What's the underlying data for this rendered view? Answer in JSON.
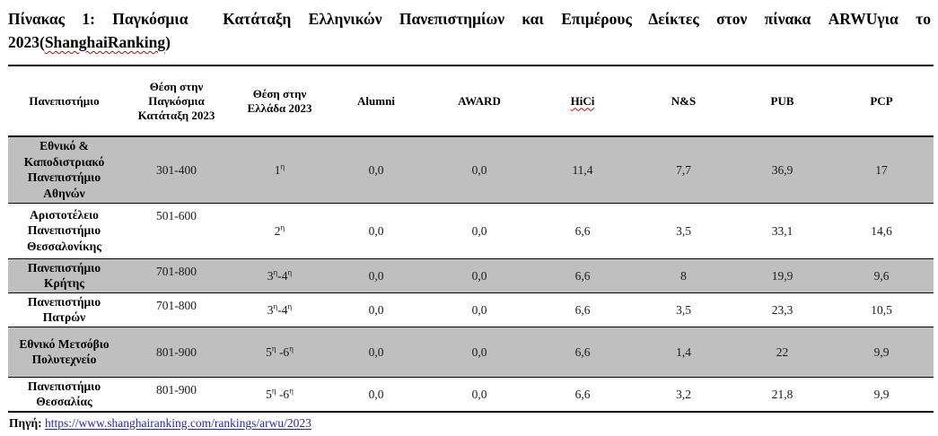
{
  "page": {
    "title": {
      "line1": "Πίνακας 1: Παγκόσμια  Κατάταξη Ελληνικών Πανεπιστημίων και Επιμέρους Δείκτες στον πίνακα ARWUγια το",
      "line2_prefix": "2023(",
      "line2_spellcheck": "ShanghaiRanking",
      "line2_suffix": ")"
    },
    "source": {
      "label": "Πηγή:",
      "url": "https://www.shanghairanking.com/rankings/arwu/2023"
    },
    "colors": {
      "row_shade": "#bfbfbf",
      "link": "#2222cc",
      "spellcheck_wave": "#c00000",
      "border": "#000000"
    }
  },
  "table": {
    "headers": [
      "Πανεπιστήμιο",
      "Θέση στην Παγκόσμια Κατάταξη 2023",
      "Θέση στην Ελλάδα 2023",
      "Alumni",
      "AWARD",
      "HiCi",
      "N&S",
      "PUB",
      "PCP"
    ],
    "rows": [
      {
        "name": "Εθνικό & Καποδιστριακό Πανεπιστήμιο Αθηνών",
        "world": "301-400",
        "greece": "1^η",
        "alumni": "0,0",
        "award": "0,0",
        "hici": "11,4",
        "ns": "7,7",
        "pub": "36,9",
        "pcp": "17"
      },
      {
        "name": "Αριστοτέλειο Πανεπιστήμιο Θεσσαλονίκης",
        "world": "501-600",
        "greece": "2^η",
        "alumni": "0,0",
        "award": "0,0",
        "hici": "6,6",
        "ns": "3,5",
        "pub": "33,1",
        "pcp": "14,6"
      },
      {
        "name": "Πανεπιστήμιο Κρήτης",
        "world": "701-800",
        "greece": "3^η^-4^η",
        "alumni": "0,0",
        "award": "0,0",
        "hici": "6,6",
        "ns": "8",
        "pub": "19,9",
        "pcp": "9,6"
      },
      {
        "name": "Πανεπιστήμιο Πατρών",
        "world": "701-800",
        "greece": "3^η^-4^η",
        "alumni": "0,0",
        "award": "0,0",
        "hici": "6,6",
        "ns": "3,5",
        "pub": "23,3",
        "pcp": "10,5"
      },
      {
        "name": "Εθνικό Μετσόβιο Πολυτεχνείο",
        "world": "801-900",
        "greece": "5^η^ -6^η",
        "alumni": "0,0",
        "award": "0,0",
        "hici": "6,6",
        "ns": "1,4",
        "pub": "22",
        "pcp": "9,9"
      },
      {
        "name": "Πανεπιστήμιο Θεσσαλίας",
        "world": "801-900",
        "greece": "5^η^ -6^η",
        "alumni": "0,0",
        "award": "0,0",
        "hici": "6,6",
        "ns": "3,2",
        "pub": "21,8",
        "pcp": "9,9"
      }
    ]
  }
}
